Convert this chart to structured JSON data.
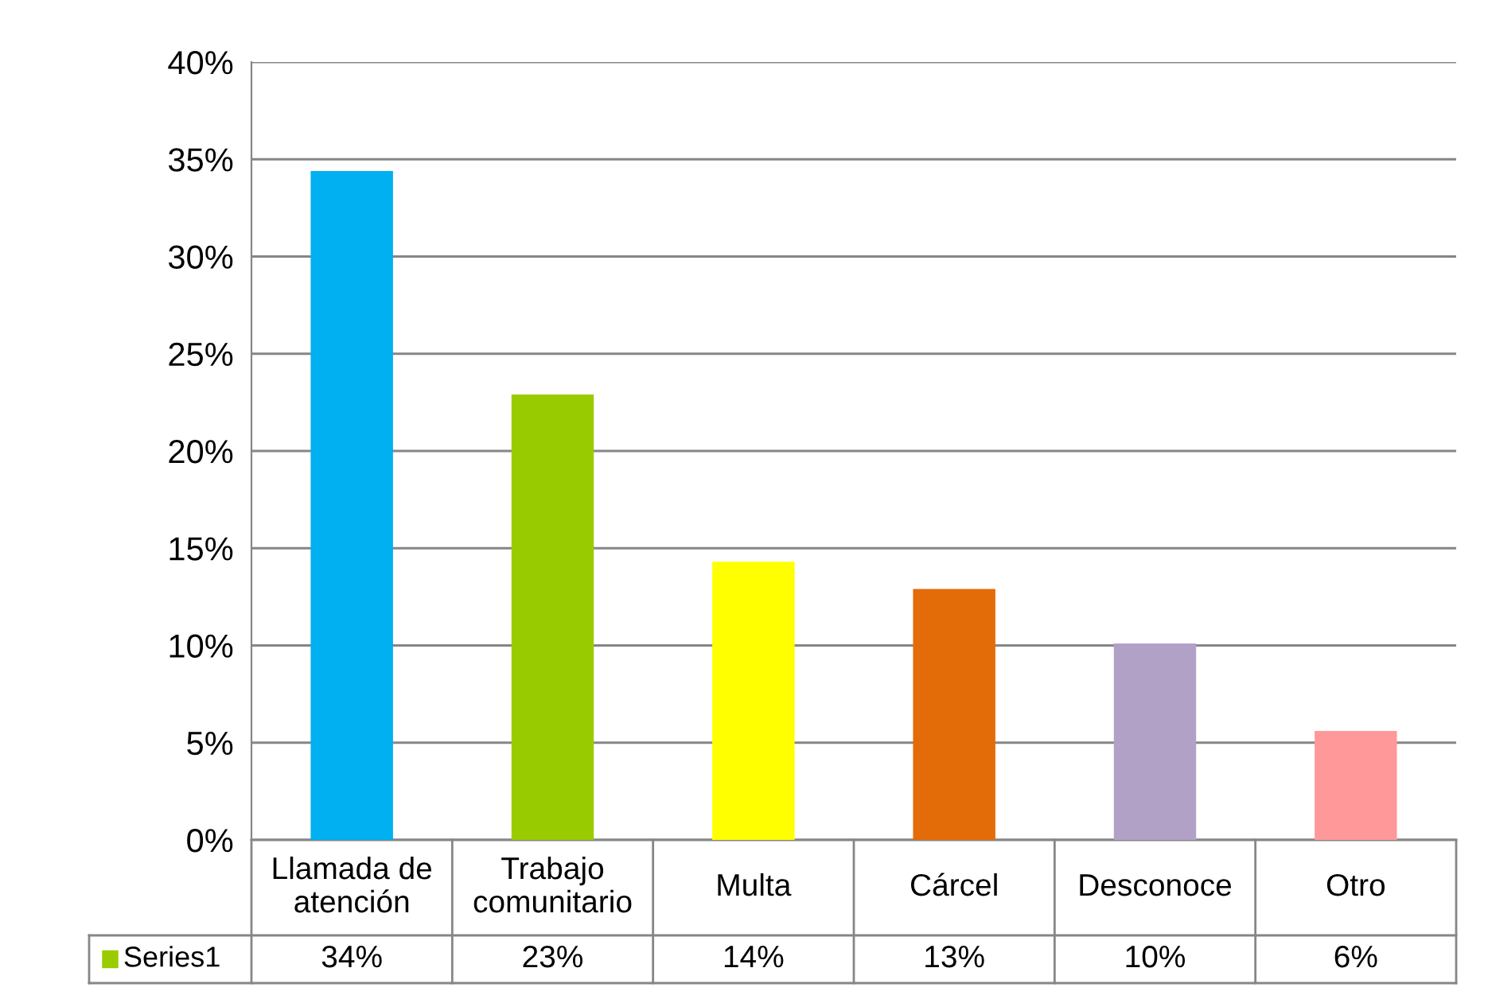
{
  "chart_data": {
    "type": "bar",
    "categories": [
      "Llamada de\natención",
      "Trabajo\ncomunitario",
      "Multa",
      "Cárcel",
      "Desconoce",
      "Otro"
    ],
    "series": [
      {
        "name": "Series1",
        "color": "#99cc00",
        "colors": [
          "#00b0f0",
          "#99cc00",
          "#ffff00",
          "#e36c09",
          "#b2a1c7",
          "#ff9999"
        ],
        "values": [
          34.4,
          22.9,
          14.3,
          12.9,
          10.1,
          5.6
        ],
        "value_labels": [
          "34%",
          "23%",
          "14%",
          "13%",
          "10%",
          "6%"
        ]
      }
    ],
    "ylim": [
      0,
      40
    ],
    "yticks": [
      {
        "value": 0,
        "label": "0%"
      },
      {
        "value": 5,
        "label": "5%"
      },
      {
        "value": 10,
        "label": "10%"
      },
      {
        "value": 15,
        "label": "15%"
      },
      {
        "value": 20,
        "label": "20%"
      },
      {
        "value": 25,
        "label": "25%"
      },
      {
        "value": 30,
        "label": "30%"
      },
      {
        "value": 35,
        "label": "35%"
      },
      {
        "value": 40,
        "label": "40%"
      }
    ],
    "grid": "y",
    "legend": "bottom"
  }
}
